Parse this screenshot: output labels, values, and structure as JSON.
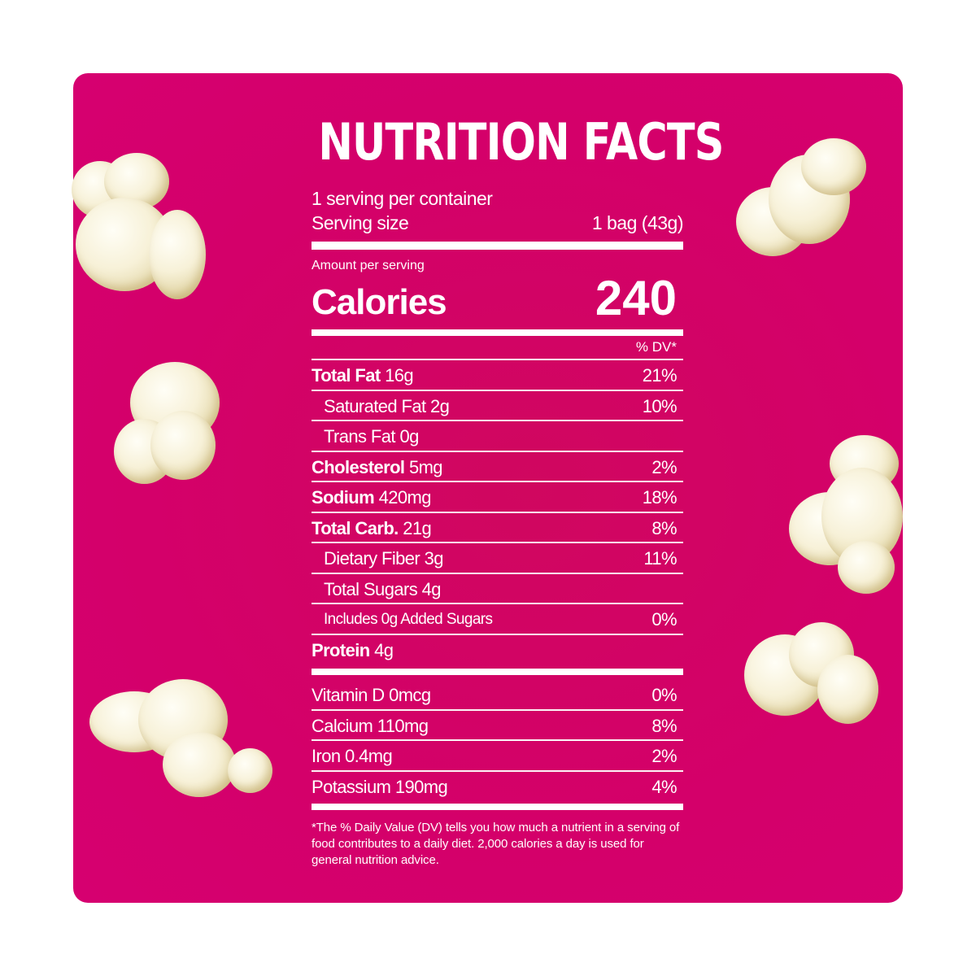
{
  "colors": {
    "panel": "#d4006a",
    "text": "#ffffff"
  },
  "title": "NUTRITION FACTS",
  "servings_per_container": "1 serving per container",
  "serving_size": {
    "label": "Serving size",
    "value": "1 bag (43g)"
  },
  "amount_per_serving": "Amount per serving",
  "calories": {
    "label": "Calories",
    "value": "240"
  },
  "dv_header": "% DV*",
  "nutrients": [
    {
      "name": "Total Fat",
      "amount": "16g",
      "dv": "21%"
    },
    {
      "name": "Saturated Fat",
      "amount": "2g",
      "dv": "10%"
    },
    {
      "name": "Trans Fat",
      "amount": "0g",
      "dv": ""
    },
    {
      "name": "Cholesterol",
      "amount": "5mg",
      "dv": "2%"
    },
    {
      "name": "Sodium",
      "amount": "420mg",
      "dv": "18%"
    },
    {
      "name": "Total Carb.",
      "amount": "21g",
      "dv": "8%"
    },
    {
      "name": "Dietary Fiber",
      "amount": "3g",
      "dv": "11%"
    },
    {
      "name": "Total Sugars",
      "amount": "4g",
      "dv": ""
    },
    {
      "name": "Includes 0g Added Sugars",
      "amount": "",
      "dv": "0%"
    },
    {
      "name": "Protein",
      "amount": "4g",
      "dv": ""
    }
  ],
  "vitamins": [
    {
      "name": "Vitamin D 0mcg",
      "dv": "0%"
    },
    {
      "name": "Calcium 110mg",
      "dv": "8%"
    },
    {
      "name": "Iron 0.4mg",
      "dv": "2%"
    },
    {
      "name": "Potassium 190mg",
      "dv": "4%"
    }
  ],
  "footnote": "*The % Daily Value (DV) tells you how much a nutrient in a serving of food contributes to a daily diet. 2,000 calories a day is used for general nutrition advice.",
  "decorations": [
    "popcorn-image",
    "popcorn-image",
    "popcorn-image",
    "popcorn-image",
    "popcorn-image",
    "popcorn-image"
  ]
}
